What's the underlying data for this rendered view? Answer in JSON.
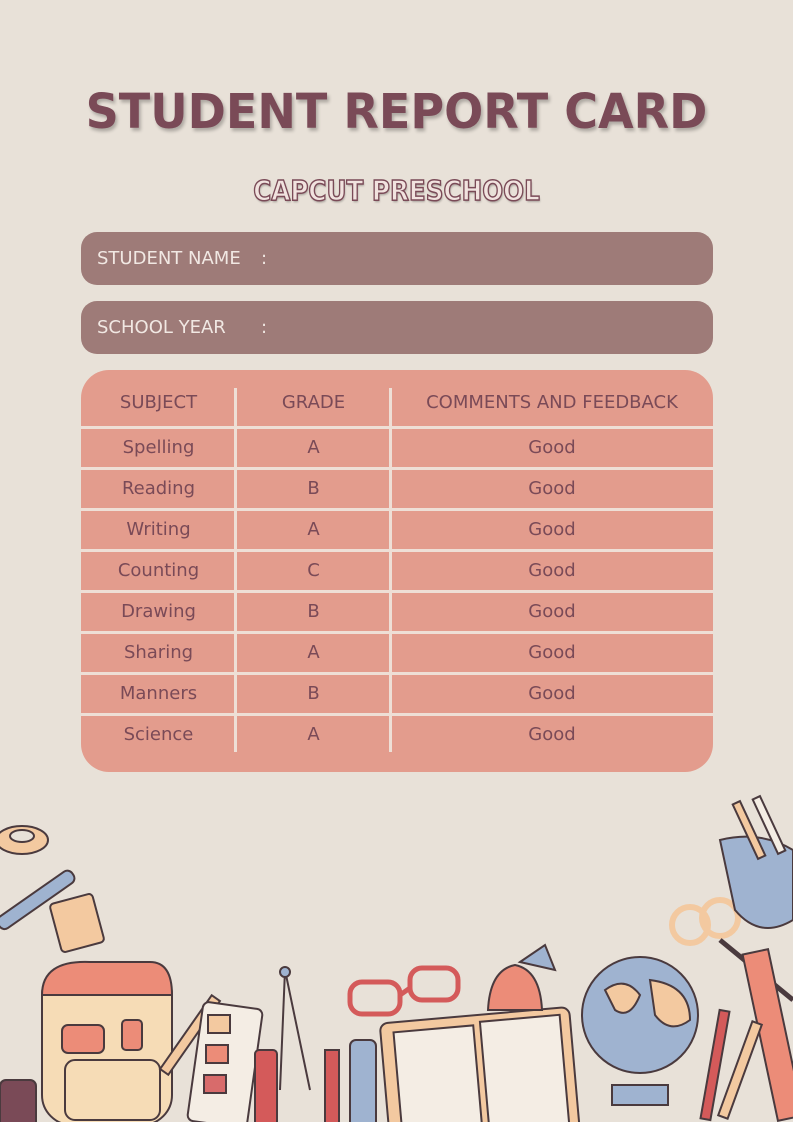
{
  "title": "STUDENT REPORT CARD",
  "subtitle": "CAPCUT PRESCHOOL",
  "fields": [
    {
      "label": "STUDENT NAME",
      "colon": ":",
      "value": ""
    },
    {
      "label": "SCHOOL YEAR",
      "colon": ":",
      "value": ""
    }
  ],
  "table": {
    "headers": [
      "SUBJECT",
      "GRADE",
      "COMMENTS AND FEEDBACK"
    ],
    "rows": [
      [
        "Spelling",
        "A",
        "Good"
      ],
      [
        "Reading",
        "B",
        "Good"
      ],
      [
        "Writing",
        "A",
        "Good"
      ],
      [
        "Counting",
        "C",
        "Good"
      ],
      [
        "Drawing",
        "B",
        "Good"
      ],
      [
        "Sharing",
        "A",
        "Good"
      ],
      [
        "Manners",
        "B",
        "Good"
      ],
      [
        "Science",
        "A",
        "Good"
      ]
    ]
  },
  "colors": {
    "background": "#e8e1d8",
    "title": "#7a4a57",
    "field_bar": "#9e7b78",
    "table": "#e39c8d"
  }
}
